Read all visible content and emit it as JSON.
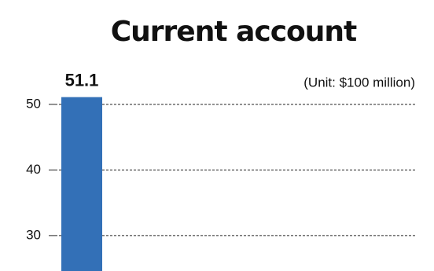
{
  "chart_data": {
    "type": "bar",
    "title": "Current account",
    "subtitle": "(Unit: $100 million)",
    "categories": [
      null
    ],
    "values": [
      51.1
    ],
    "color": "#3370b7",
    "ylim": [
      24.6,
      65.9
    ],
    "yticks": [
      30,
      40,
      50
    ],
    "grid": true
  }
}
